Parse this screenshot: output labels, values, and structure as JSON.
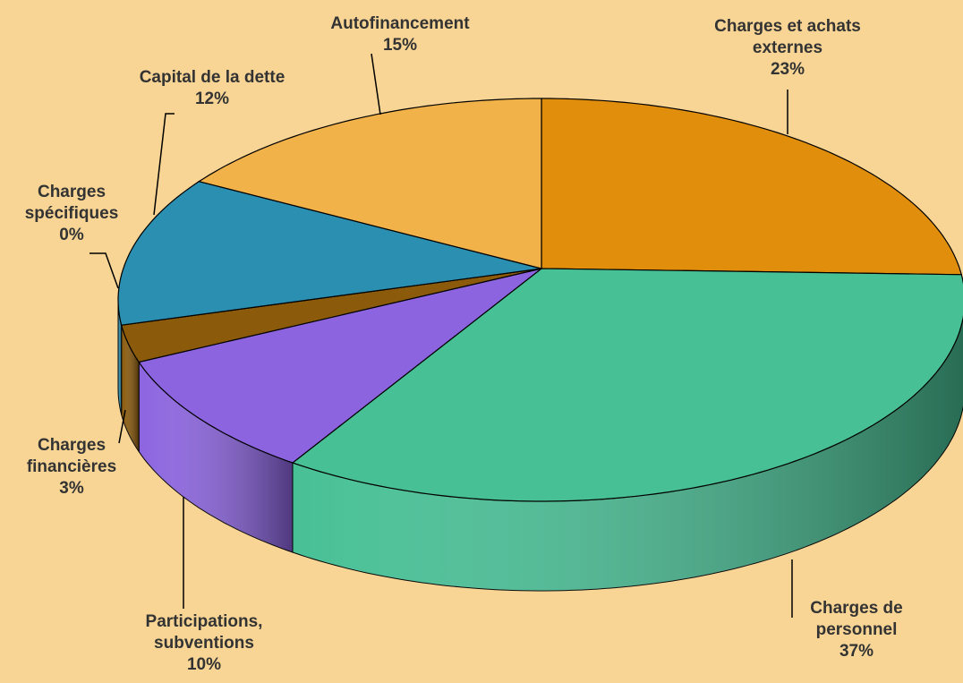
{
  "chart_data": {
    "type": "pie3d",
    "categories": [
      "Charges et achats externes",
      "Charges de personnel",
      "Participations, subventions",
      "Charges financières",
      "Charges spécifiques",
      "Capital de la dette",
      "Autofinancement"
    ],
    "values": [
      23,
      37,
      10,
      3,
      0,
      12,
      15
    ],
    "value_labels": [
      "23%",
      "37%",
      "10%",
      "3%",
      "0%",
      "12%",
      "15%"
    ],
    "colors": [
      "#e08e0b",
      "#48c096",
      "#8c64e0",
      "#8b5a0a",
      "#e01010",
      "#2a8fb0",
      "#f2b24a"
    ]
  }
}
